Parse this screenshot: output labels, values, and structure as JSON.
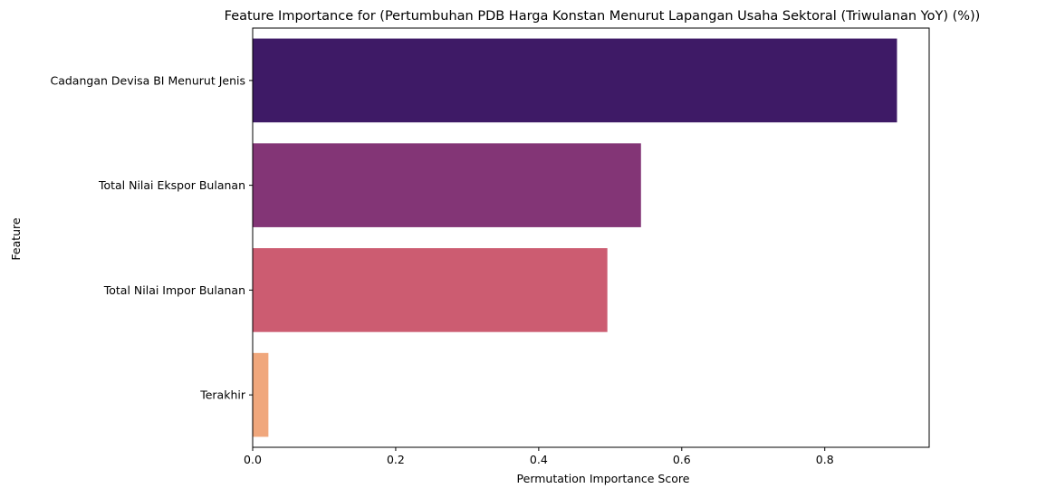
{
  "chart_data": {
    "type": "bar",
    "orientation": "horizontal",
    "title": "Feature Importance for (Pertumbuhan PDB Harga Konstan Menurut Lapangan Usaha Sektoral (Triwulanan YoY) (%))",
    "xlabel": "Permutation Importance Score",
    "ylabel": "Feature",
    "categories": [
      "Cadangan Devisa BI Menurut Jenis",
      "Total Nilai Ekspor Bulanan",
      "Total Nilai Impor Bulanan",
      "Terakhir"
    ],
    "values": [
      0.901,
      0.543,
      0.496,
      0.022
    ],
    "colors": [
      "#3e1a66",
      "#833576",
      "#cc5c71",
      "#f0a77c"
    ],
    "xlim": [
      0,
      0.946
    ],
    "xticks": [
      0.0,
      0.2,
      0.4,
      0.6,
      0.8
    ],
    "xtick_labels": [
      "0.0",
      "0.2",
      "0.4",
      "0.6",
      "0.8"
    ],
    "grid": false,
    "legend": "none"
  }
}
